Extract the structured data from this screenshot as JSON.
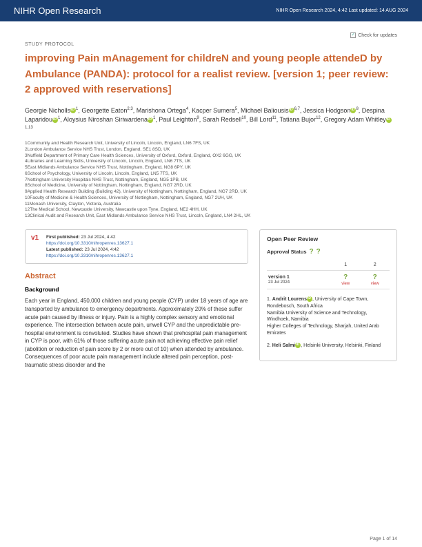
{
  "header": {
    "journal": "NIHR Open Research",
    "meta": "NIHR Open Research 2024, 4:42 Last updated: 14 AUG 2024"
  },
  "updates_label": "Check for updates",
  "study_type": "STUDY PROTOCOL",
  "title": "improving Pain mAnagement for childreN and young people attendeD by Ambulance (PANDA): protocol for a realist review. [version 1; peer review: 2 approved with reservations]",
  "authors_html": "Georgie Nicholls⊙1, Georgette Eaton2,3, Marishona Ortega4, Kacper Sumera5, Michael Baliousis⊙6,7, Jessica Hodgson⊙8, Despina Laparidou⊙1, Aloysius Niroshan Siriwardena⊙1, Paul Leighton9, Sarah Redsell10, Bill Lord11, Tatiana Bujor12, Gregory Adam Whitley⊙1,13",
  "affiliations": [
    "1Community and Health Research Unit, University of Lincoln, Lincoln, England, LN6 7FS, UK",
    "2London Ambulance Service NHS Trust, London, England, SE1 8SD, UK",
    "3Nuffield Department of Primary Care Health Sciences, University of Oxford, Oxford, England, OX2 6GG, UK",
    "4Libraries and Learning Skills, University of Lincoln, Lincoln, England, LN6 7TS, UK",
    "5East Midlands Ambulance Service NHS Trust, Nottingham, England, NG8 6PY, UK",
    "6School of Psychology, University of Lincoln, Lincoln, England, LN5 7TS, UK",
    "7Nottingham University Hospitals NHS Trust, Nottingham, England, NG5 1PB, UK",
    "8School of Medicine, University of Nottingham, Nottingham, England, NG7 2RD, UK",
    "9Applied Health Research Building (Building 42), University of Nottingham, Nottingham, England, NG7 2RD, UK",
    "10Faculty of Medicine & Health Sciences, University of Nottingham, Nottingham, England, NG7 2UH, UK",
    "11Monash University, Clayton, Victoria, Australia",
    "12The Medical School, Newcastle University, Newcastle upon Tyne, England, NE2 4HH, UK",
    "13Clinical Audit and Research Unit, East Midlands Ambulance Service NHS Trust, Lincoln, England, LN4 2HL, UK"
  ],
  "version": {
    "tag": "v1",
    "first_label": "First published:",
    "first": " 23 Jul 2024, 4:42",
    "doi1": "https://doi.org/10.3310/nihropenres.13627.1",
    "latest_label": "Latest published:",
    "latest": " 23 Jul 2024, 4:42",
    "doi2": "https://doi.org/10.3310/nihropenres.13627.1"
  },
  "abstract_h": "Abstract",
  "background_h": "Background",
  "body": "Each year in England, 450,000 children and young people (CYP) under 18 years of age are transported by ambulance to emergency departments. Approximately 20% of these suffer acute pain caused by illness or injury. Pain is a highly complex sensory and emotional experience. The intersection between acute pain, unwell CYP and the unpredictable pre-hospital environment is convoluted. Studies have shown that prehospital pain management in CYP is poor, with 61% of those suffering acute pain not achieving effective pain relief (abolition or reduction of pain score by 2 or more out of 10) when attended by ambulance. Consequences of poor acute pain management include altered pain perception, post-traumatic stress disorder and the",
  "peer": {
    "heading": "Open Peer Review",
    "approval": "Approval Status",
    "col1": "1",
    "col2": "2",
    "row_label": "version 1",
    "row_date": "23 Jul 2024",
    "view": "view",
    "reviewers": [
      {
        "n": "1.",
        "name": "Andrit Lourens",
        "aff": ", University of Cape Town, Rondebosch, South Africa\nNamibia University of Science and Technology, Windhoek, Namibia\nHigher Colleges of Technology, Sharjah, United Arab Emirates"
      },
      {
        "n": "2.",
        "name": "Heli Salmi",
        "aff": ", Helsinki University, Helsinki, Finland"
      }
    ]
  },
  "footer": "Page 1 of 14"
}
